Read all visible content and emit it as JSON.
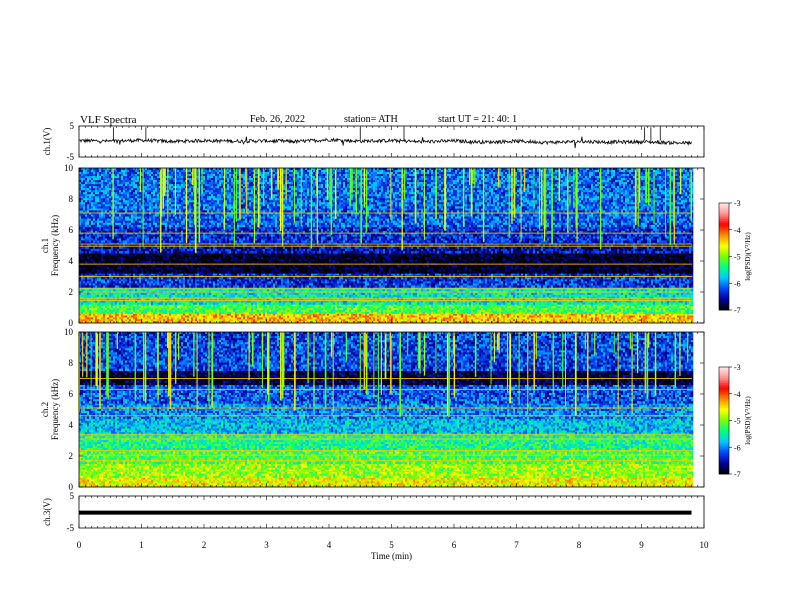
{
  "header": {
    "title": "VLF Spectra",
    "date": "Feb. 26, 2022",
    "station": "station= ATH",
    "start": "start UT =   21: 40: 1"
  },
  "chart_data": [
    {
      "type": "line",
      "title": "",
      "ylabel": "ch.1(V)",
      "ylim": [
        -5,
        5
      ],
      "yticks": [
        "5",
        "-5"
      ],
      "xlim": [
        0,
        10
      ],
      "x": [
        0,
        0.5,
        1,
        1.5,
        2,
        2.5,
        3,
        3.5,
        4,
        4.5,
        5,
        5.5,
        6,
        6.5,
        7,
        7.5,
        8,
        8.5,
        9,
        9.5,
        9.8
      ],
      "values": [
        0.3,
        0.1,
        0.4,
        0.0,
        0.3,
        0.1,
        0.2,
        0.0,
        0.6,
        0.1,
        0.3,
        -0.1,
        0.2,
        -0.2,
        0.1,
        -0.3,
        0.0,
        -0.2,
        -0.1,
        -0.4,
        -0.5
      ]
    },
    {
      "type": "heatmap",
      "title": "",
      "channel_label": "ch.1",
      "ylabel": "Frequency (kHz)",
      "ylim": [
        0,
        10
      ],
      "yticks": [
        "0",
        "2",
        "4",
        "6",
        "8",
        "10"
      ],
      "xlim": [
        0,
        10
      ],
      "colorbar": {
        "label": "log(PSD)(V²/Hz)",
        "ticks": [
          "-3",
          "-4",
          "-5",
          "-6",
          "-7"
        ],
        "range": [
          -7,
          -3
        ]
      },
      "bands": [
        {
          "f": [
            0.0,
            0.6
          ],
          "level": -4.4
        },
        {
          "f": [
            0.6,
            1.2
          ],
          "level": -5.2
        },
        {
          "f": [
            1.2,
            2.3
          ],
          "level": -5.6
        },
        {
          "f": [
            2.3,
            3.2
          ],
          "level": -6.3
        },
        {
          "f": [
            3.2,
            4.5
          ],
          "level": -6.95
        },
        {
          "f": [
            4.5,
            5.2
          ],
          "level": -6.5
        },
        {
          "f": [
            5.2,
            6.2
          ],
          "level": -6.35
        },
        {
          "f": [
            6.2,
            7.4
          ],
          "level": -6.15
        },
        {
          "f": [
            7.4,
            10.0
          ],
          "level": -6.1
        }
      ],
      "lines_khz": [
        1.45,
        1.6,
        2.0,
        2.2,
        3.0,
        3.8,
        4.95,
        5.1,
        5.8,
        7.1
      ]
    },
    {
      "type": "heatmap",
      "title": "",
      "channel_label": "ch.2",
      "ylabel": "Frequency (kHz)",
      "ylim": [
        0,
        10
      ],
      "yticks": [
        "0",
        "2",
        "4",
        "6",
        "8",
        "10"
      ],
      "xlim": [
        0,
        10
      ],
      "colorbar": {
        "label": "log(PSD)(V²/Hz)",
        "ticks": [
          "-3",
          "-4",
          "-5",
          "-6",
          "-7"
        ],
        "range": [
          -7,
          -3
        ]
      },
      "bands": [
        {
          "f": [
            0.0,
            0.6
          ],
          "level": -4.6
        },
        {
          "f": [
            0.6,
            1.5
          ],
          "level": -4.9
        },
        {
          "f": [
            1.5,
            2.4
          ],
          "level": -5.2
        },
        {
          "f": [
            2.4,
            3.4
          ],
          "level": -5.4
        },
        {
          "f": [
            3.4,
            4.4
          ],
          "level": -5.8
        },
        {
          "f": [
            4.4,
            5.4
          ],
          "level": -6.0
        },
        {
          "f": [
            5.4,
            6.6
          ],
          "level": -6.2
        },
        {
          "f": [
            6.6,
            7.5
          ],
          "level": -6.85
        },
        {
          "f": [
            7.5,
            10.0
          ],
          "level": -6.25
        }
      ],
      "lines_khz": [
        1.0,
        1.7,
        2.05,
        2.35,
        3.1,
        3.4,
        4.6,
        5.1,
        6.3,
        7.0
      ]
    },
    {
      "type": "line",
      "title": "",
      "ylabel": "ch.3(V)",
      "ylim": [
        -5,
        5
      ],
      "yticks": [
        "5",
        "-5"
      ],
      "xlim": [
        0,
        10
      ],
      "xlabel": "Time  (min)",
      "xticks": [
        "0",
        "1",
        "2",
        "3",
        "4",
        "5",
        "6",
        "7",
        "8",
        "9",
        "10"
      ],
      "x": [
        0,
        9.8
      ],
      "values": [
        -0.2,
        -0.2
      ]
    }
  ]
}
